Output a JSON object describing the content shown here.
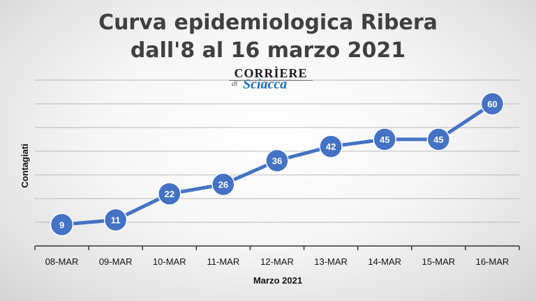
{
  "chart_data": {
    "type": "line",
    "title_line1": "Curva epidemiologica Ribera",
    "title_line2": "dall'8 al 16 marzo 2021",
    "xlabel": "Marzo 2021",
    "ylabel": "Contagiati",
    "categories": [
      "08-MAR",
      "09-MAR",
      "10-MAR",
      "11-MAR",
      "12-MAR",
      "13-MAR",
      "14-MAR",
      "15-MAR",
      "16-MAR"
    ],
    "series": [
      {
        "values": [
          9,
          11,
          22,
          26,
          36,
          42,
          45,
          45,
          60
        ]
      }
    ],
    "ylim": [
      0,
      70
    ],
    "grid": true,
    "line_color": "#4472c4"
  },
  "logo": {
    "top": "CORRÌERE",
    "di": "di",
    "bottom": "Sciacca"
  }
}
